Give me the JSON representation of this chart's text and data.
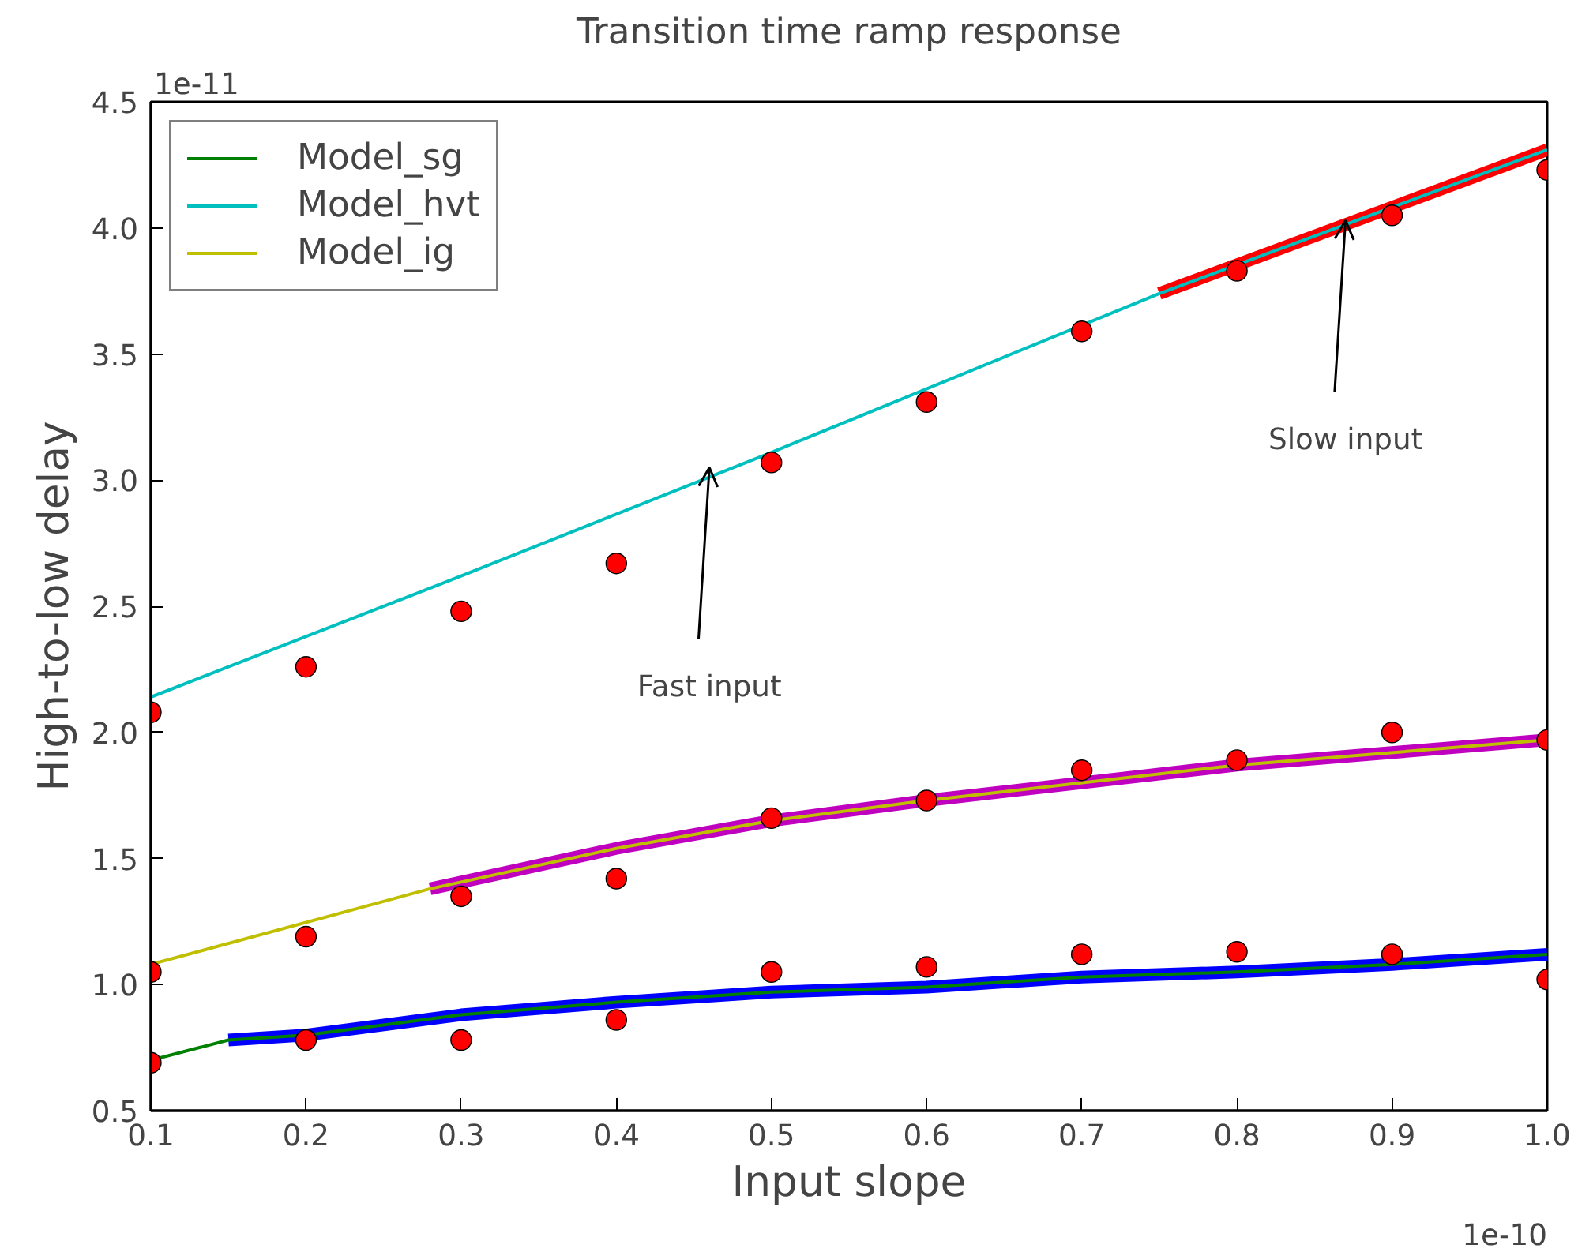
{
  "chart_data": {
    "type": "line",
    "title": "Transition time ramp response",
    "xlabel": "Input slope",
    "ylabel": "High-to-low delay",
    "annotations": [
      "1e-11",
      "1e-10",
      {
        "text": "Fast input",
        "x": 0.46,
        "y": 3.05
      },
      {
        "text": "Slow input",
        "x": 0.87,
        "y": 4.03
      }
    ],
    "xlim": [
      0.1,
      1.0
    ],
    "xticks": [
      {
        "value": 0.1,
        "label": "0.1"
      },
      {
        "value": 0.2,
        "label": "0.2"
      },
      {
        "value": 0.3,
        "label": "0.3"
      },
      {
        "value": 0.4,
        "label": "0.4"
      },
      {
        "value": 0.5,
        "label": "0.5"
      },
      {
        "value": 0.6,
        "label": "0.6"
      },
      {
        "value": 0.7,
        "label": "0.7"
      },
      {
        "value": 0.8,
        "label": "0.8"
      },
      {
        "value": 0.9,
        "label": "0.9"
      },
      {
        "value": 1.0,
        "label": "1.0"
      }
    ],
    "ylim": [
      0.5,
      4.5
    ],
    "yticks": [
      {
        "value": 0.5,
        "label": "0.5"
      },
      {
        "value": 1.0,
        "label": "1.0"
      },
      {
        "value": 1.5,
        "label": "1.5"
      },
      {
        "value": 2.0,
        "label": "2.0"
      },
      {
        "value": 2.5,
        "label": "2.5"
      },
      {
        "value": 3.0,
        "label": "3.0"
      },
      {
        "value": 3.5,
        "label": "3.5"
      },
      {
        "value": 4.0,
        "label": "4.0"
      },
      {
        "value": 4.5,
        "label": "4.5"
      }
    ],
    "grid": false,
    "legend": "top left",
    "series": [
      {
        "color": "#0000ff",
        "x": [
          0.15,
          0.2,
          0.3,
          0.4,
          0.5,
          0.6,
          0.7,
          0.8,
          0.9,
          1.0
        ],
        "values": [
          0.78,
          0.8,
          0.88,
          0.93,
          0.97,
          0.99,
          1.03,
          1.05,
          1.08,
          1.12
        ]
      },
      {
        "color": "#bf00bf",
        "x": [
          0.28,
          0.4,
          0.5,
          0.6,
          0.8,
          1.0
        ],
        "values": [
          1.38,
          1.54,
          1.65,
          1.73,
          1.87,
          1.97
        ]
      },
      {
        "color": "#ff0000",
        "x": [
          0.75,
          1.0
        ],
        "values": [
          3.74,
          4.31
        ]
      },
      {
        "name": "Model_sg",
        "color": "#008000",
        "x": [
          0.1,
          0.15,
          0.2,
          0.3,
          0.4,
          0.5,
          0.6,
          0.7,
          0.8,
          0.9,
          1.0
        ],
        "values": [
          0.7,
          0.78,
          0.8,
          0.88,
          0.93,
          0.97,
          0.99,
          1.03,
          1.05,
          1.08,
          1.12
        ]
      },
      {
        "name": "Model_hvt",
        "color": "#00bfbf",
        "x": [
          0.1,
          0.3,
          0.5,
          0.75,
          1.0
        ],
        "values": [
          2.14,
          2.62,
          3.11,
          3.74,
          4.31
        ]
      },
      {
        "name": "Model_ig",
        "color": "#bfbf00",
        "x": [
          0.1,
          0.28,
          0.4,
          0.5,
          0.6,
          0.8,
          1.0
        ],
        "values": [
          1.08,
          1.38,
          1.54,
          1.65,
          1.73,
          1.87,
          1.97
        ]
      },
      {
        "type": "scatter",
        "marker": "circle",
        "color": "#ff0000",
        "x": [
          0.1,
          0.2,
          0.3,
          0.4,
          0.5,
          0.6,
          0.7,
          0.8,
          0.9,
          1.0
        ],
        "values": [
          2.08,
          2.26,
          2.48,
          2.67,
          3.07,
          3.31,
          3.59,
          3.83,
          4.05,
          4.23
        ]
      },
      {
        "type": "scatter",
        "marker": "circle",
        "color": "#ff0000",
        "x": [
          0.1,
          0.2,
          0.3,
          0.4,
          0.5,
          0.6,
          0.7,
          0.8,
          0.9,
          1.0
        ],
        "values": [
          1.05,
          1.19,
          1.35,
          1.42,
          1.66,
          1.73,
          1.85,
          1.89,
          2.0,
          1.97
        ]
      },
      {
        "type": "scatter",
        "marker": "circle",
        "color": "#ff0000",
        "x": [
          0.1,
          0.2,
          0.3,
          0.4,
          0.5,
          0.6,
          0.7,
          0.8,
          0.9,
          1.0
        ],
        "values": [
          0.69,
          0.78,
          0.78,
          0.86,
          1.05,
          1.07,
          1.12,
          1.13,
          1.12,
          1.02
        ]
      }
    ]
  }
}
